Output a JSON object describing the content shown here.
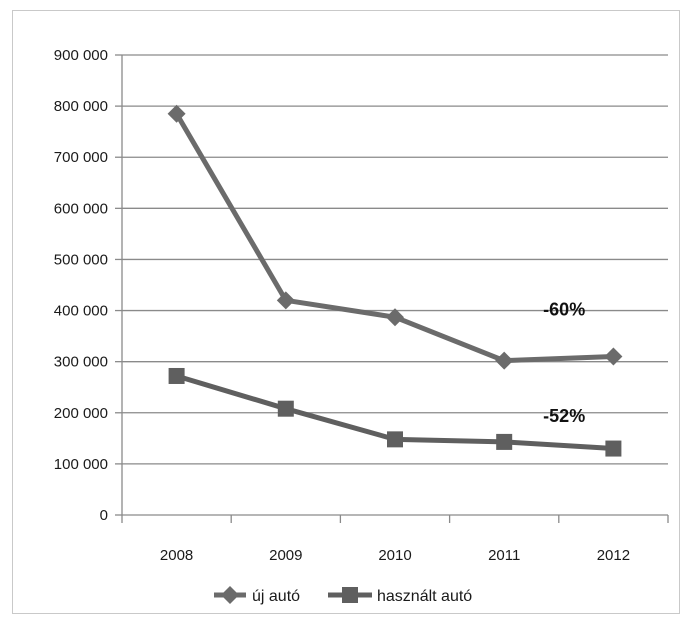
{
  "chart_data": {
    "type": "line",
    "categories": [
      "2008",
      "2009",
      "2010",
      "2011",
      "2012"
    ],
    "series": [
      {
        "name": "új autó",
        "values": [
          785000,
          420000,
          387000,
          302000,
          310000
        ],
        "marker": "diamond",
        "color": "#6b6b6b"
      },
      {
        "name": "használt autó",
        "values": [
          272000,
          208000,
          148000,
          143000,
          130000
        ],
        "marker": "square",
        "color": "#5f5f5f"
      }
    ],
    "ylim": [
      0,
      900000
    ],
    "yticks": [
      0,
      100000,
      200000,
      300000,
      400000,
      500000,
      600000,
      700000,
      800000,
      900000
    ],
    "ytick_labels": [
      "0",
      "100 000",
      "200 000",
      "300 000",
      "400 000",
      "500 000",
      "600 000",
      "700 000",
      "800 000",
      "900 000"
    ],
    "grid": true,
    "legend_position": "bottom",
    "annotations": [
      {
        "text": "-60%",
        "series": 0
      },
      {
        "text": "-52%",
        "series": 1
      }
    ],
    "title": "",
    "xlabel": "",
    "ylabel": ""
  }
}
